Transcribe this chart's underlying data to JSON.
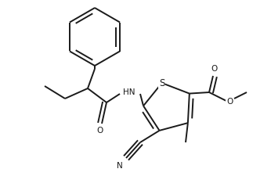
{
  "bg_color": "#ffffff",
  "line_color": "#1a1a1a",
  "line_width": 1.4,
  "font_size": 7.5,
  "fig_width": 3.46,
  "fig_height": 2.48,
  "dpi": 100,
  "xlim": [
    0,
    346
  ],
  "ylim": [
    0,
    248
  ]
}
